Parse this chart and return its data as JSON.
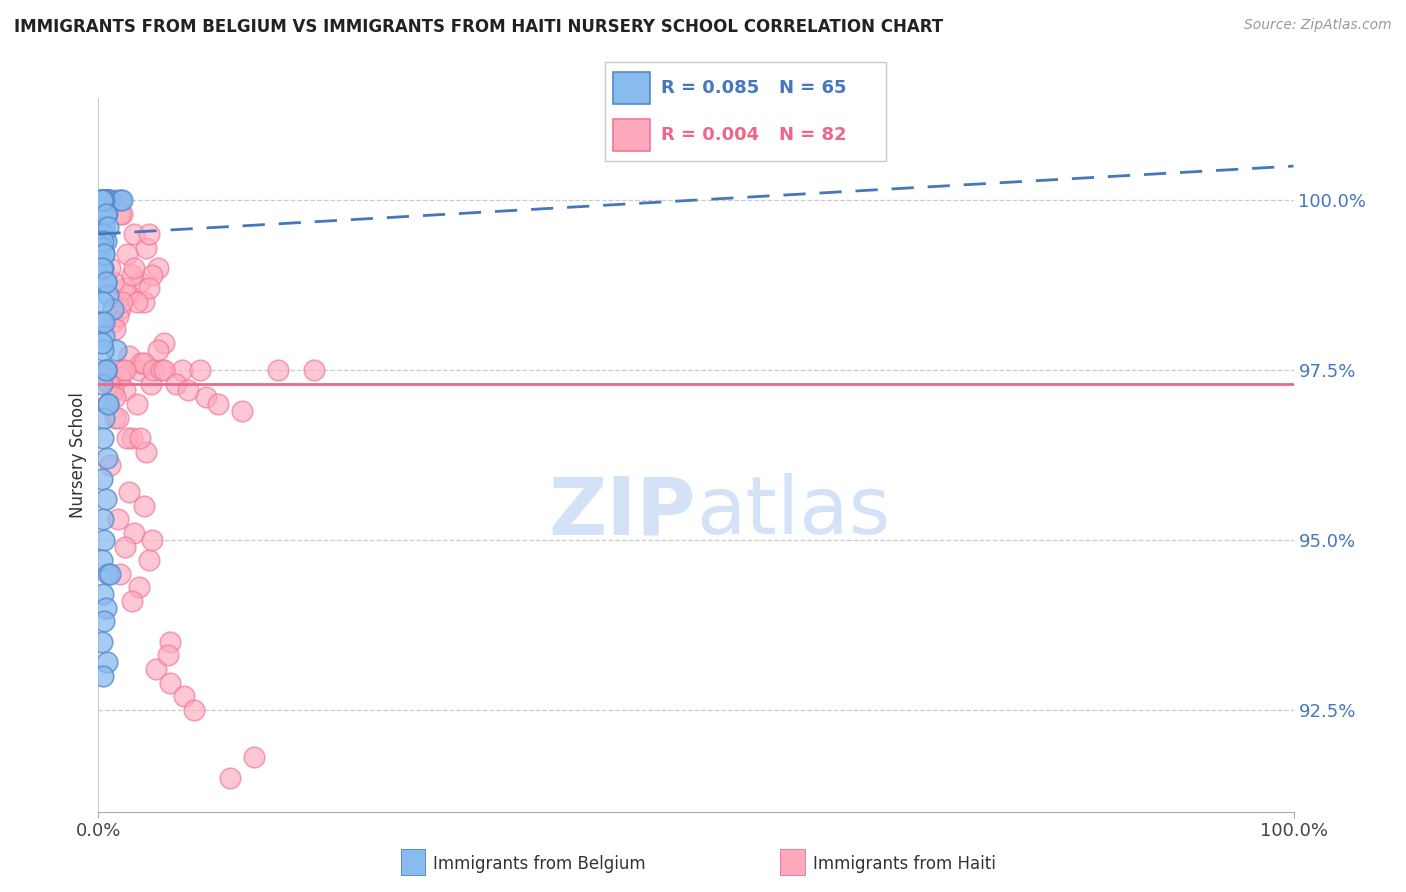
{
  "title": "IMMIGRANTS FROM BELGIUM VS IMMIGRANTS FROM HAITI NURSERY SCHOOL CORRELATION CHART",
  "source": "Source: ZipAtlas.com",
  "ylabel": "Nursery School",
  "xlim": [
    0.0,
    100.0
  ],
  "ylim": [
    91.0,
    101.5
  ],
  "yticks": [
    92.5,
    95.0,
    97.5,
    100.0
  ],
  "ytick_labels": [
    "92.5%",
    "95.0%",
    "97.5%",
    "100.0%"
  ],
  "xticks": [
    0.0,
    100.0
  ],
  "xtick_labels": [
    "0.0%",
    "100.0%"
  ],
  "blue_color": "#88BBEE",
  "pink_color": "#FFAABC",
  "blue_edge_color": "#5588CC",
  "pink_edge_color": "#EE7799",
  "blue_line_color": "#4477BB",
  "pink_line_color": "#EE6688",
  "watermark_color": "#CCDDF5",
  "blue_scatter_x": [
    0.3,
    0.5,
    0.8,
    0.4,
    0.6,
    0.2,
    0.7,
    0.9,
    1.0,
    0.4,
    0.3,
    0.6,
    0.8,
    0.5,
    0.4,
    0.3,
    0.7,
    0.5,
    0.4,
    0.6,
    0.3,
    0.5,
    0.4,
    0.6,
    0.8,
    1.2,
    0.3,
    0.5,
    1.5,
    0.4,
    0.6,
    0.3,
    0.8,
    0.5,
    0.4,
    0.7,
    0.3,
    0.6,
    0.4,
    0.5,
    0.3,
    0.8,
    1.0,
    0.4,
    0.6,
    0.5,
    0.3,
    0.7,
    0.4,
    1.8,
    2.0,
    0.5,
    0.4,
    0.3,
    0.6,
    0.8,
    0.4,
    0.5,
    0.3,
    0.6,
    0.4,
    0.5,
    0.3,
    0.6,
    0.8
  ],
  "blue_scatter_y": [
    100.0,
    100.0,
    100.0,
    100.0,
    100.0,
    100.0,
    100.0,
    100.0,
    100.0,
    100.0,
    100.0,
    100.0,
    100.0,
    100.0,
    100.0,
    99.8,
    99.8,
    99.6,
    99.5,
    99.4,
    99.3,
    99.2,
    99.0,
    98.8,
    98.6,
    98.4,
    98.2,
    98.0,
    97.8,
    97.8,
    97.5,
    97.3,
    97.0,
    96.8,
    96.5,
    96.2,
    95.9,
    95.6,
    95.3,
    95.0,
    94.7,
    94.5,
    94.5,
    94.2,
    94.0,
    93.8,
    93.5,
    93.2,
    93.0,
    100.0,
    100.0,
    100.0,
    100.0,
    100.0,
    99.8,
    99.6,
    99.4,
    99.2,
    99.0,
    98.8,
    98.5,
    98.2,
    97.9,
    97.5,
    97.0
  ],
  "pink_scatter_x": [
    0.4,
    0.8,
    1.5,
    2.0,
    3.0,
    4.0,
    5.0,
    3.5,
    2.5,
    1.8,
    1.2,
    0.6,
    4.5,
    2.2,
    3.8,
    1.6,
    2.8,
    4.2,
    3.2,
    1.4,
    5.5,
    2.6,
    3.4,
    0.5,
    1.8,
    4.2,
    2.4,
    3.0,
    1.2,
    5.0,
    2.0,
    3.6,
    1.8,
    4.4,
    2.2,
    3.2,
    1.4,
    2.8,
    4.0,
    1.0,
    3.8,
    2.6,
    4.6,
    1.6,
    3.0,
    2.2,
    4.2,
    1.8,
    3.4,
    2.8,
    0.7,
    1.2,
    1.6,
    2.4,
    3.8,
    5.2,
    2.2,
    0.9,
    4.8,
    1.4,
    6.0,
    5.8,
    7.0,
    8.5,
    5.5,
    6.5,
    7.5,
    9.0,
    10.0,
    12.0,
    15.0,
    0.3,
    1.0,
    2.0,
    3.5,
    4.5,
    6.0,
    7.2,
    8.0,
    11.0,
    13.0,
    18.0
  ],
  "pink_scatter_y": [
    100.0,
    100.0,
    100.0,
    99.8,
    99.5,
    99.3,
    99.0,
    98.8,
    98.6,
    98.4,
    98.2,
    100.0,
    98.9,
    98.7,
    98.5,
    98.3,
    98.9,
    98.7,
    98.5,
    98.1,
    97.9,
    97.7,
    97.5,
    100.0,
    99.8,
    99.5,
    99.2,
    99.0,
    98.8,
    97.8,
    97.5,
    97.6,
    97.4,
    97.3,
    97.2,
    97.0,
    96.8,
    96.5,
    96.3,
    96.1,
    97.6,
    95.7,
    97.5,
    95.3,
    95.1,
    94.9,
    94.7,
    94.5,
    94.3,
    94.1,
    97.5,
    97.2,
    96.8,
    96.5,
    95.5,
    97.5,
    97.5,
    97.3,
    93.1,
    97.1,
    93.5,
    93.3,
    97.5,
    97.5,
    97.5,
    97.3,
    97.2,
    97.1,
    97.0,
    96.9,
    97.5,
    99.5,
    99.0,
    98.5,
    96.5,
    95.0,
    92.9,
    92.7,
    92.5,
    91.5,
    91.8,
    97.5
  ],
  "blue_trend_x": [
    0.0,
    100.0
  ],
  "blue_trend_y": [
    99.5,
    100.5
  ],
  "pink_trend_y": 97.3,
  "legend_text": [
    [
      "R = 0.085",
      "N = 65"
    ],
    [
      "R = 0.004",
      "N = 82"
    ]
  ]
}
